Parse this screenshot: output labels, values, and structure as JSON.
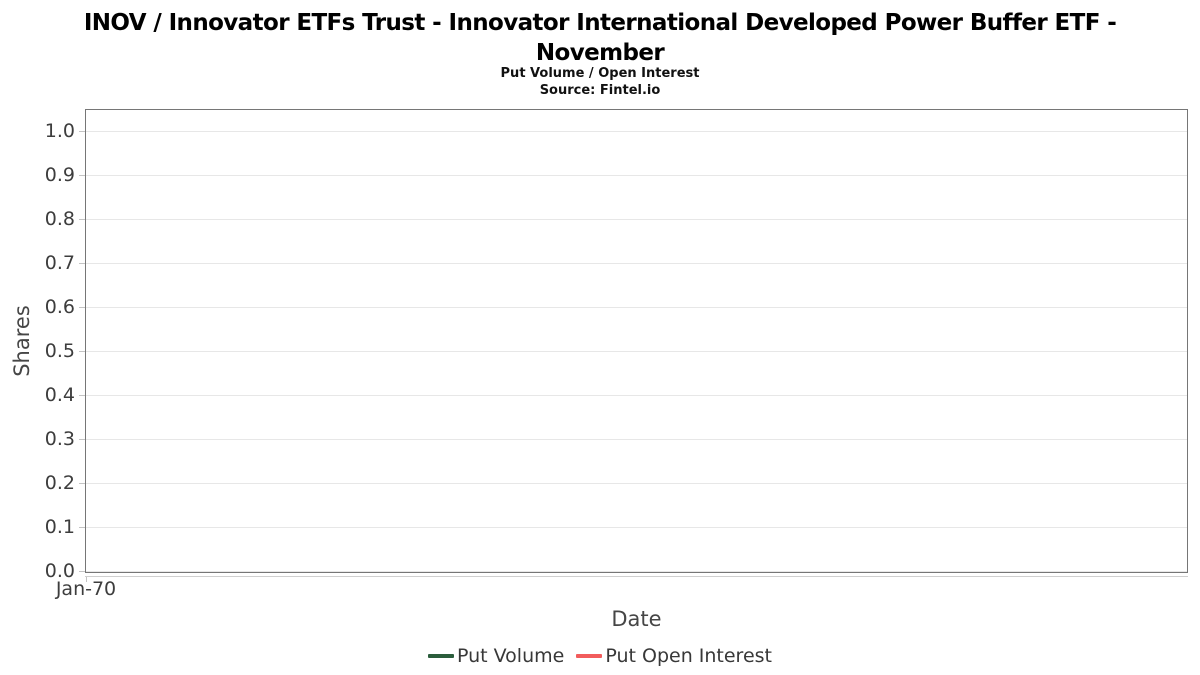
{
  "header": {
    "title_line1": "INOV / Innovator ETFs Trust - Innovator International Developed Power Buffer ETF -",
    "title_line2": "November",
    "subtitle": "Put Volume / Open Interest",
    "source": "Source: Fintel.io"
  },
  "chart_data": {
    "type": "line",
    "title": "INOV / Innovator ETFs Trust - Innovator International Developed Power Buffer ETF - November",
    "subtitle": "Put Volume / Open Interest",
    "source": "Source: Fintel.io",
    "xlabel": "Date",
    "ylabel": "Shares",
    "x_ticks": [
      "Jan-70"
    ],
    "y_ticks": [
      0.0,
      0.1,
      0.2,
      0.3,
      0.4,
      0.5,
      0.6,
      0.7,
      0.8,
      0.9,
      1.0
    ],
    "ylim": [
      0.0,
      1.05
    ],
    "grid": "horizontal",
    "legend_position": "bottom-center",
    "series": [
      {
        "name": "Put Volume",
        "color": "#2b5d3c",
        "x": [],
        "values": []
      },
      {
        "name": "Put Open Interest",
        "color": "#f25c5c",
        "x": [],
        "values": []
      }
    ]
  },
  "styles": {
    "grid_color": "#e7e7e7",
    "panel_border_color": "#767676",
    "axis_line_color": "#cfcfcf",
    "tick_label_color": "#3d3d3d",
    "axis_label_color": "#464646"
  }
}
